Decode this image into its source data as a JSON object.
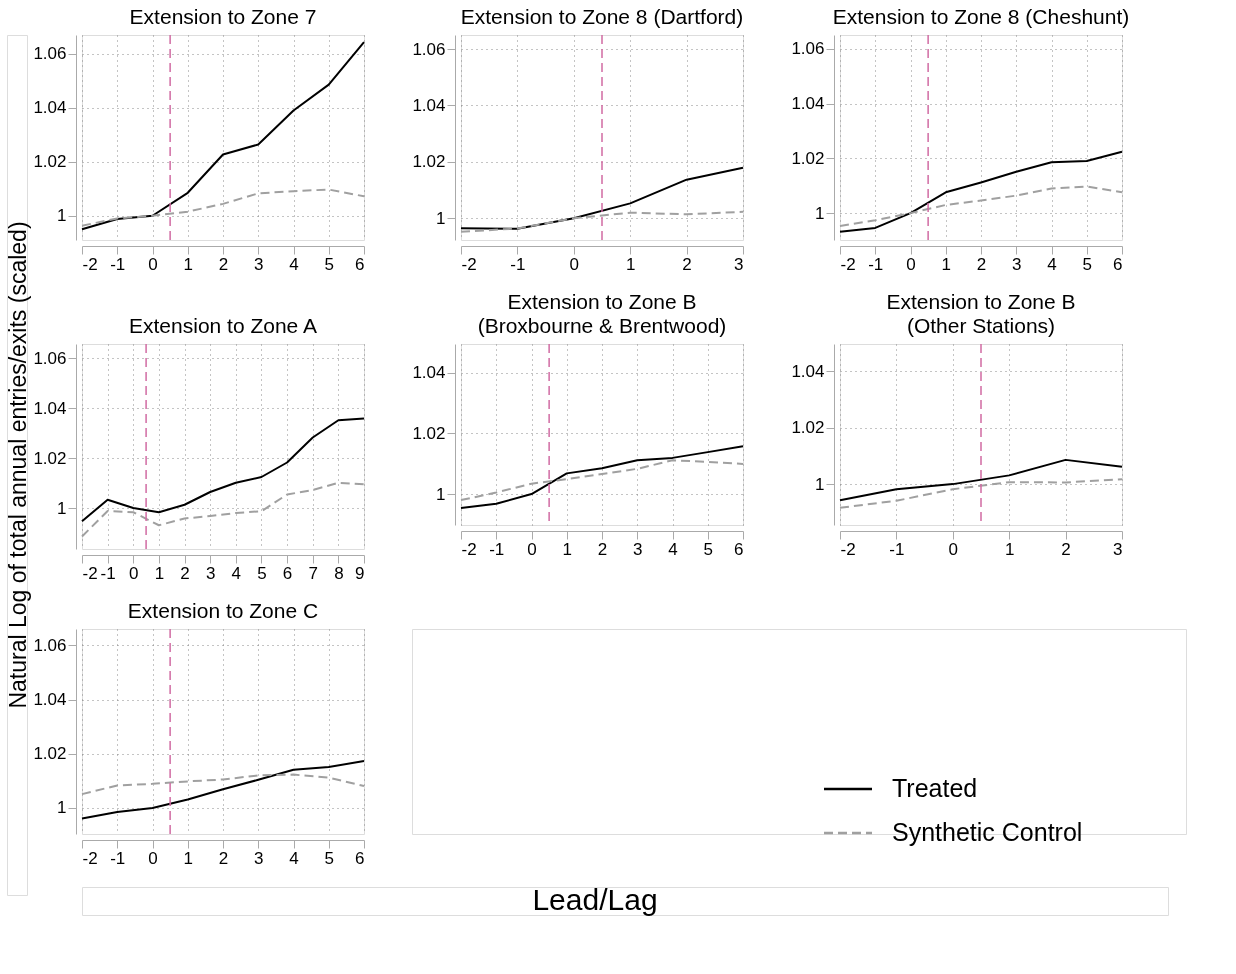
{
  "chart_data": [
    {
      "type": "line",
      "title": "Extension to Zone 7",
      "legend": "bottom right",
      "ylabel": "Natural Log of total annual entries/exits (scaled)",
      "x": [
        -2,
        -1,
        0,
        1,
        2,
        3,
        4,
        5,
        6
      ],
      "xlim": [
        -2,
        6
      ],
      "xticks": [
        -2,
        -1,
        0,
        1,
        2,
        3,
        4,
        5,
        6
      ],
      "ylim": [
        0.991,
        1.067
      ],
      "yticks": [
        1,
        1.02,
        1.04,
        1.06
      ],
      "grid": true,
      "series": [
        {
          "name": "Treated",
          "color": "#000000",
          "line_style": "solid",
          "values": [
            0.995,
            0.9988,
            1.0,
            1.0085,
            1.0227,
            1.0264,
            1.039,
            1.0486,
            1.0644
          ]
        },
        {
          "name": "Synthetic Control",
          "color": "#a0a0a0",
          "line_style": "dashed",
          "values": [
            0.9963,
            0.999,
            1.0,
            1.0015,
            1.0044,
            1.0083,
            1.0091,
            1.0097,
            1.0072
          ]
        }
      ],
      "ref_lines": [
        {
          "axis": "x",
          "value": 0.5,
          "color": "#d16ba3",
          "line_style": "dashed"
        }
      ]
    },
    {
      "type": "line",
      "title": "Extension to Zone 8 (Dartford)",
      "x": [
        -2,
        -1,
        0,
        1,
        2,
        3
      ],
      "xlim": [
        -2,
        3
      ],
      "xticks": [
        -2,
        -1,
        0,
        1,
        2,
        3
      ],
      "ylim": [
        0.9923,
        1.065
      ],
      "yticks": [
        1,
        1.02,
        1.04,
        1.06
      ],
      "grid": true,
      "series": [
        {
          "color": "#000000",
          "line_style": "solid",
          "values": [
            0.9965,
            0.9963,
            1.0,
            1.0053,
            1.0137,
            1.0179
          ]
        },
        {
          "color": "#a0a0a0",
          "line_style": "dashed",
          "values": [
            0.9952,
            0.9964,
            1.0,
            1.002,
            1.0014,
            1.0023
          ]
        }
      ],
      "ref_lines": [
        {
          "axis": "x",
          "value": 0.5,
          "color": "#d16ba3",
          "line_style": "dashed"
        }
      ]
    },
    {
      "type": "line",
      "title": "Extension to Zone 8 (Cheshunt)",
      "x": [
        -2,
        -1,
        0,
        1,
        2,
        3,
        4,
        5,
        6
      ],
      "xlim": [
        -2,
        6
      ],
      "xticks": [
        -2,
        -1,
        0,
        1,
        2,
        3,
        4,
        5,
        6
      ],
      "ylim": [
        0.9902,
        1.065
      ],
      "yticks": [
        1,
        1.02,
        1.04,
        1.06
      ],
      "grid": true,
      "series": [
        {
          "color": "#000000",
          "line_style": "solid",
          "values": [
            0.9932,
            0.9946,
            1.0,
            1.0076,
            1.0112,
            1.0151,
            1.0186,
            1.019,
            1.0224
          ]
        },
        {
          "color": "#a0a0a0",
          "line_style": "dashed",
          "values": [
            0.9953,
            0.9974,
            1.0,
            1.003,
            1.0046,
            1.0064,
            1.009,
            1.0097,
            1.0076
          ]
        }
      ],
      "ref_lines": [
        {
          "axis": "x",
          "value": 0.5,
          "color": "#d16ba3",
          "line_style": "dashed"
        }
      ]
    },
    {
      "type": "line",
      "title": "Extension to Zone A",
      "x": [
        -2,
        -1,
        0,
        1,
        2,
        3,
        4,
        5,
        6,
        7,
        8,
        9
      ],
      "xlim": [
        -2,
        9
      ],
      "xticks": [
        -2,
        -1,
        0,
        1,
        2,
        3,
        4,
        5,
        6,
        7,
        8,
        9
      ],
      "ylim": [
        0.9836,
        1.0656
      ],
      "yticks": [
        1,
        1.02,
        1.04,
        1.06
      ],
      "grid": true,
      "series": [
        {
          "color": "#000000",
          "line_style": "solid",
          "values": [
            0.9947,
            1.0033,
            1.0,
            0.9983,
            1.0013,
            1.0064,
            1.0101,
            1.0124,
            1.0182,
            1.0282,
            1.0351,
            1.0358
          ]
        },
        {
          "color": "#a0a0a0",
          "line_style": "dashed",
          "values": [
            0.9886,
            0.9988,
            0.9983,
            0.9931,
            0.9958,
            0.9968,
            0.998,
            0.9987,
            1.0054,
            1.0072,
            1.0101,
            1.0095
          ]
        }
      ],
      "ref_lines": [
        {
          "axis": "x",
          "value": 0.5,
          "color": "#d16ba3",
          "line_style": "dashed"
        }
      ]
    },
    {
      "type": "line",
      "title": "Extension to Zone B\n(Broxbourne & Brentwood)",
      "x": [
        -2,
        -1,
        0,
        1,
        2,
        3,
        4,
        5,
        6
      ],
      "xlim": [
        -2,
        6
      ],
      "xticks": [
        -2,
        -1,
        0,
        1,
        2,
        3,
        4,
        5,
        6
      ],
      "ylim": [
        0.9898,
        1.0494
      ],
      "yticks": [
        1,
        1.02,
        1.04
      ],
      "grid": true,
      "series": [
        {
          "color": "#000000",
          "line_style": "solid",
          "values": [
            0.9954,
            0.9968,
            1.0,
            1.0068,
            1.0085,
            1.0111,
            1.0119,
            1.0138,
            1.0157
          ]
        },
        {
          "color": "#a0a0a0",
          "line_style": "dashed",
          "values": [
            0.998,
            1.0005,
            1.0034,
            1.0049,
            1.0066,
            1.0083,
            1.0111,
            1.0106,
            1.0099
          ]
        }
      ],
      "ref_lines": [
        {
          "axis": "x",
          "value": 0.5,
          "color": "#d16ba3",
          "line_style": "dashed"
        }
      ]
    },
    {
      "type": "line",
      "title": "Extension to Zone B\n(Other Stations)",
      "x": [
        -2,
        -1,
        0,
        1,
        2,
        3
      ],
      "xlim": [
        -2,
        3
      ],
      "xticks": [
        -2,
        -1,
        0,
        1,
        2,
        3
      ],
      "ylim": [
        0.9855,
        1.0497
      ],
      "yticks": [
        1,
        1.02,
        1.04
      ],
      "grid": true,
      "series": [
        {
          "color": "#000000",
          "line_style": "solid",
          "values": [
            0.9943,
            0.9982,
            1.0,
            1.0031,
            1.0086,
            1.0062
          ]
        },
        {
          "color": "#a0a0a0",
          "line_style": "dashed",
          "values": [
            0.9916,
            0.9941,
            0.9982,
            1.0007,
            1.0006,
            1.0017
          ]
        }
      ],
      "ref_lines": [
        {
          "axis": "x",
          "value": 0.5,
          "color": "#d16ba3",
          "line_style": "dashed"
        }
      ]
    },
    {
      "type": "line",
      "title": "Extension to Zone C",
      "xlabel": "Lead/Lag",
      "x": [
        -2,
        -1,
        0,
        1,
        2,
        3,
        4,
        5,
        6
      ],
      "xlim": [
        -2,
        6
      ],
      "xticks": [
        -2,
        -1,
        0,
        1,
        2,
        3,
        4,
        5,
        6
      ],
      "ylim": [
        0.9904,
        1.066
      ],
      "yticks": [
        1,
        1.02,
        1.04,
        1.06
      ],
      "grid": true,
      "series": [
        {
          "color": "#000000",
          "line_style": "solid",
          "values": [
            0.9961,
            0.9985,
            1.0,
            1.0031,
            1.0069,
            1.0104,
            1.0141,
            1.0151,
            1.0173
          ]
        },
        {
          "color": "#a0a0a0",
          "line_style": "dashed",
          "values": [
            1.0051,
            1.0083,
            1.0089,
            1.0098,
            1.0105,
            1.012,
            1.0123,
            1.0112,
            1.0081
          ]
        }
      ],
      "ref_lines": [
        {
          "axis": "x",
          "value": 0.5,
          "color": "#d16ba3",
          "line_style": "dashed"
        }
      ]
    }
  ]
}
